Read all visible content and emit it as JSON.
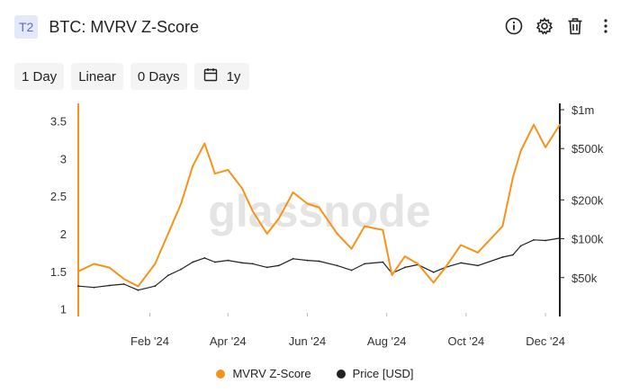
{
  "header": {
    "tag": "T2",
    "title": "BTC: MVRV Z-Score"
  },
  "controls": {
    "resolution": "1 Day",
    "scale": "Linear",
    "sma": "0 Days",
    "range": "1y"
  },
  "watermark": "glassnode",
  "colors": {
    "zscore": "#f7931a",
    "price": "#222222",
    "accent": "#f7931a"
  },
  "chart_data": {
    "type": "line",
    "x_ticks": [
      "Feb '24",
      "Apr '24",
      "Jun '24",
      "Aug '24",
      "Oct '24",
      "Dec '24"
    ],
    "left_axis": {
      "ticks": [
        1,
        1.5,
        2,
        2.5,
        3,
        3.5
      ],
      "range": [
        0.9,
        3.65
      ]
    },
    "right_axis": {
      "ticks": [
        "$1m",
        "$500k",
        "$200k",
        "$100k",
        "$50k"
      ],
      "values": [
        1000000,
        500000,
        200000,
        100000,
        50000
      ],
      "scale": "log",
      "range": [
        25000,
        1000000
      ]
    },
    "x_range": [
      "2023-12-08",
      "2024-12-12"
    ],
    "series": [
      {
        "name": "MVRV Z-Score",
        "axis": "left",
        "x": [
          "2023-12-08",
          "2023-12-20",
          "2024-01-01",
          "2024-01-12",
          "2024-01-23",
          "2024-02-05",
          "2024-02-15",
          "2024-02-25",
          "2024-03-05",
          "2024-03-14",
          "2024-03-22",
          "2024-04-01",
          "2024-04-12",
          "2024-04-20",
          "2024-05-01",
          "2024-05-10",
          "2024-05-21",
          "2024-06-01",
          "2024-06-10",
          "2024-06-24",
          "2024-07-05",
          "2024-07-15",
          "2024-07-29",
          "2024-08-05",
          "2024-08-15",
          "2024-08-25",
          "2024-09-06",
          "2024-09-15",
          "2024-09-27",
          "2024-10-10",
          "2024-10-29",
          "2024-11-06",
          "2024-11-12",
          "2024-11-22",
          "2024-12-01",
          "2024-12-12"
        ],
        "y": [
          1.5,
          1.6,
          1.55,
          1.4,
          1.3,
          1.6,
          2.0,
          2.4,
          2.9,
          3.2,
          2.8,
          2.85,
          2.6,
          2.3,
          2.0,
          2.2,
          2.55,
          2.4,
          2.35,
          2.0,
          1.8,
          2.1,
          2.05,
          1.45,
          1.7,
          1.6,
          1.35,
          1.55,
          1.85,
          1.75,
          2.1,
          2.75,
          3.1,
          3.45,
          3.15,
          3.45
        ]
      },
      {
        "name": "Price [USD]",
        "axis": "right",
        "x": [
          "2023-12-08",
          "2023-12-20",
          "2024-01-01",
          "2024-01-12",
          "2024-01-23",
          "2024-02-05",
          "2024-02-15",
          "2024-02-25",
          "2024-03-05",
          "2024-03-14",
          "2024-03-22",
          "2024-04-01",
          "2024-04-12",
          "2024-04-20",
          "2024-05-01",
          "2024-05-10",
          "2024-05-21",
          "2024-06-01",
          "2024-06-10",
          "2024-06-24",
          "2024-07-05",
          "2024-07-15",
          "2024-07-29",
          "2024-08-05",
          "2024-08-15",
          "2024-08-25",
          "2024-09-06",
          "2024-09-15",
          "2024-09-27",
          "2024-10-10",
          "2024-10-29",
          "2024-11-06",
          "2024-11-12",
          "2024-11-22",
          "2024-12-01",
          "2024-12-12"
        ],
        "y": [
          43000,
          42000,
          43500,
          44500,
          40000,
          43000,
          52000,
          58000,
          66000,
          71000,
          66000,
          68000,
          65000,
          64000,
          60000,
          62000,
          70000,
          68000,
          67000,
          62000,
          57000,
          64000,
          66000,
          54000,
          60000,
          63000,
          55000,
          60000,
          65000,
          62000,
          72000,
          75000,
          88000,
          98000,
          97000,
          101000
        ]
      }
    ]
  },
  "legend": [
    {
      "label": "MVRV Z-Score",
      "color": "#f7931a"
    },
    {
      "label": "Price [USD]",
      "color": "#222222"
    }
  ]
}
